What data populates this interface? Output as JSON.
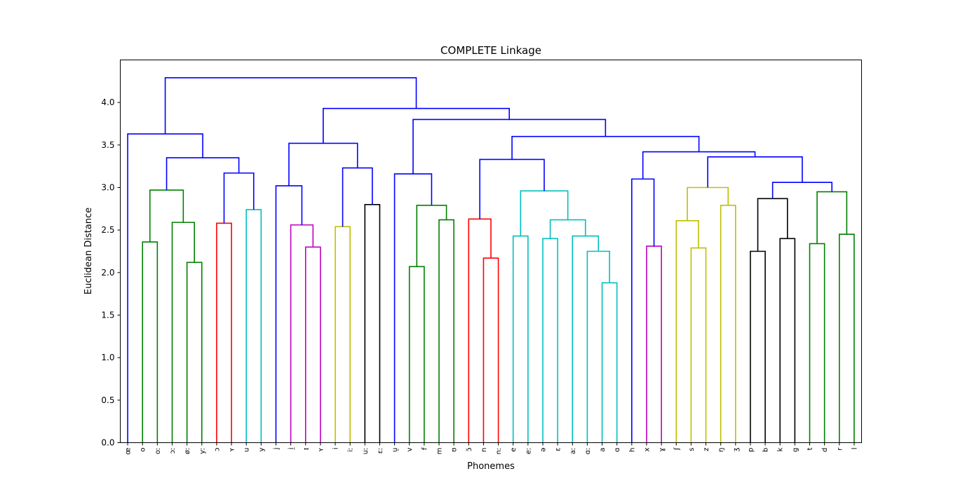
{
  "chart_data": {
    "type": "dendrogram",
    "title": "COMPLETE Linkage",
    "xlabel": "Phonemes",
    "ylabel": "Euclidean Distance",
    "ylim": [
      0,
      4.5
    ],
    "yticks": [
      "0.0",
      "0.5",
      "1.0",
      "1.5",
      "2.0",
      "2.5",
      "3.0",
      "3.5",
      "4.0"
    ],
    "leaves": [
      "œ",
      "o",
      "oː",
      "ɔː",
      "øː",
      "yː",
      "ɔ",
      "ʏ",
      "u",
      "y",
      "j",
      "i̯",
      "ɪ",
      "ʏ",
      "i",
      "iː",
      "uː",
      "ɛː",
      "u̯",
      "v",
      "f",
      "m",
      "ʊ",
      "ɔ̃",
      "n",
      "nː",
      "e",
      "eː",
      "ə",
      "ɛ",
      "aː",
      "ɑː",
      "a",
      "ɑ",
      "h",
      "x",
      "ɣ",
      "ʃ",
      "s",
      "z",
      "ŋ",
      "ʒ",
      "p",
      "b",
      "k",
      "g",
      "t",
      "d",
      "r",
      "l"
    ],
    "links": [
      {
        "a": 1,
        "b": 2,
        "h": 2.36,
        "color": "#008000"
      },
      {
        "a": 4,
        "b": 5,
        "h": 2.12,
        "color": "#008000"
      },
      {
        "a": 3,
        "b": "L2",
        "h": 2.59,
        "color": "#008000"
      },
      {
        "a": "L1",
        "b": "L3",
        "h": 2.97,
        "color": "#008000"
      },
      {
        "a": 6,
        "b": 7,
        "h": 2.58,
        "color": "#ff0000"
      },
      {
        "a": 8,
        "b": 9,
        "h": 2.74,
        "color": "#00bfbf"
      },
      {
        "a": "L5",
        "b": "L6",
        "h": 3.17,
        "color": "#0000ff"
      },
      {
        "a": "L4",
        "b": "L7",
        "h": 3.35,
        "color": "#0000ff"
      },
      {
        "a": 0,
        "b": "L8",
        "h": 3.63,
        "color": "#0000ff"
      },
      {
        "a": 12,
        "b": 13,
        "h": 2.3,
        "color": "#bf00bf"
      },
      {
        "a": 11,
        "b": "L10",
        "h": 2.56,
        "color": "#bf00bf"
      },
      {
        "a": 10,
        "b": "L11",
        "h": 3.02,
        "color": "#0000ff"
      },
      {
        "a": 14,
        "b": 15,
        "h": 2.54,
        "color": "#bfbf00"
      },
      {
        "a": 16,
        "b": 17,
        "h": 2.8,
        "color": "#000000"
      },
      {
        "a": "L13",
        "b": "L14",
        "h": 3.23,
        "color": "#0000ff"
      },
      {
        "a": "L12",
        "b": "L15",
        "h": 3.52,
        "color": "#0000ff"
      },
      {
        "a": 19,
        "b": 20,
        "h": 2.07,
        "color": "#008000"
      },
      {
        "a": 21,
        "b": 22,
        "h": 2.62,
        "color": "#008000"
      },
      {
        "a": "L17",
        "b": "L18",
        "h": 2.79,
        "color": "#008000"
      },
      {
        "a": 18,
        "b": "L19",
        "h": 3.16,
        "color": "#0000ff"
      },
      {
        "a": 24,
        "b": 25,
        "h": 2.17,
        "color": "#ff0000"
      },
      {
        "a": 23,
        "b": "L21",
        "h": 2.63,
        "color": "#ff0000"
      },
      {
        "a": 26,
        "b": 27,
        "h": 2.43,
        "color": "#00bfbf"
      },
      {
        "a": 28,
        "b": 29,
        "h": 2.4,
        "color": "#00bfbf"
      },
      {
        "a": 32,
        "b": 33,
        "h": 1.88,
        "color": "#00bfbf"
      },
      {
        "a": 31,
        "b": "L25",
        "h": 2.25,
        "color": "#00bfbf"
      },
      {
        "a": 30,
        "b": "L26",
        "h": 2.43,
        "color": "#00bfbf"
      },
      {
        "a": "L24",
        "b": "L27",
        "h": 2.62,
        "color": "#00bfbf"
      },
      {
        "a": "L23",
        "b": "L28",
        "h": 2.96,
        "color": "#00bfbf"
      },
      {
        "a": "L22",
        "b": "L29",
        "h": 3.33,
        "color": "#0000ff"
      },
      {
        "a": 35,
        "b": 36,
        "h": 2.31,
        "color": "#bf00bf"
      },
      {
        "a": 34,
        "b": "L31",
        "h": 3.1,
        "color": "#0000ff"
      },
      {
        "a": 38,
        "b": 39,
        "h": 2.29,
        "color": "#bfbf00"
      },
      {
        "a": 37,
        "b": "L33",
        "h": 2.61,
        "color": "#bfbf00"
      },
      {
        "a": 40,
        "b": 41,
        "h": 2.79,
        "color": "#bfbf00"
      },
      {
        "a": "L34",
        "b": "L35",
        "h": 3.0,
        "color": "#bfbf00"
      },
      {
        "a": 42,
        "b": 43,
        "h": 2.25,
        "color": "#000000"
      },
      {
        "a": 44,
        "b": 45,
        "h": 2.4,
        "color": "#000000"
      },
      {
        "a": "L37",
        "b": "L38",
        "h": 2.87,
        "color": "#000000"
      },
      {
        "a": 46,
        "b": 47,
        "h": 2.34,
        "color": "#008000"
      },
      {
        "a": 48,
        "b": 49,
        "h": 2.45,
        "color": "#008000"
      },
      {
        "a": "L40",
        "b": "L41",
        "h": 2.95,
        "color": "#008000"
      },
      {
        "a": "L39",
        "b": "L42",
        "h": 3.06,
        "color": "#0000ff"
      },
      {
        "a": "L36",
        "b": "L43",
        "h": 3.36,
        "color": "#0000ff"
      },
      {
        "a": "L32",
        "b": "L44",
        "h": 3.42,
        "color": "#0000ff"
      },
      {
        "a": "L30",
        "b": "L45",
        "h": 3.6,
        "color": "#0000ff"
      },
      {
        "a": "L20",
        "b": "L46",
        "h": 3.8,
        "color": "#0000ff"
      },
      {
        "a": "L16",
        "b": "L47",
        "h": 3.93,
        "color": "#0000ff"
      },
      {
        "a": "L9",
        "b": "L48",
        "h": 4.29,
        "color": "#0000ff"
      }
    ]
  }
}
